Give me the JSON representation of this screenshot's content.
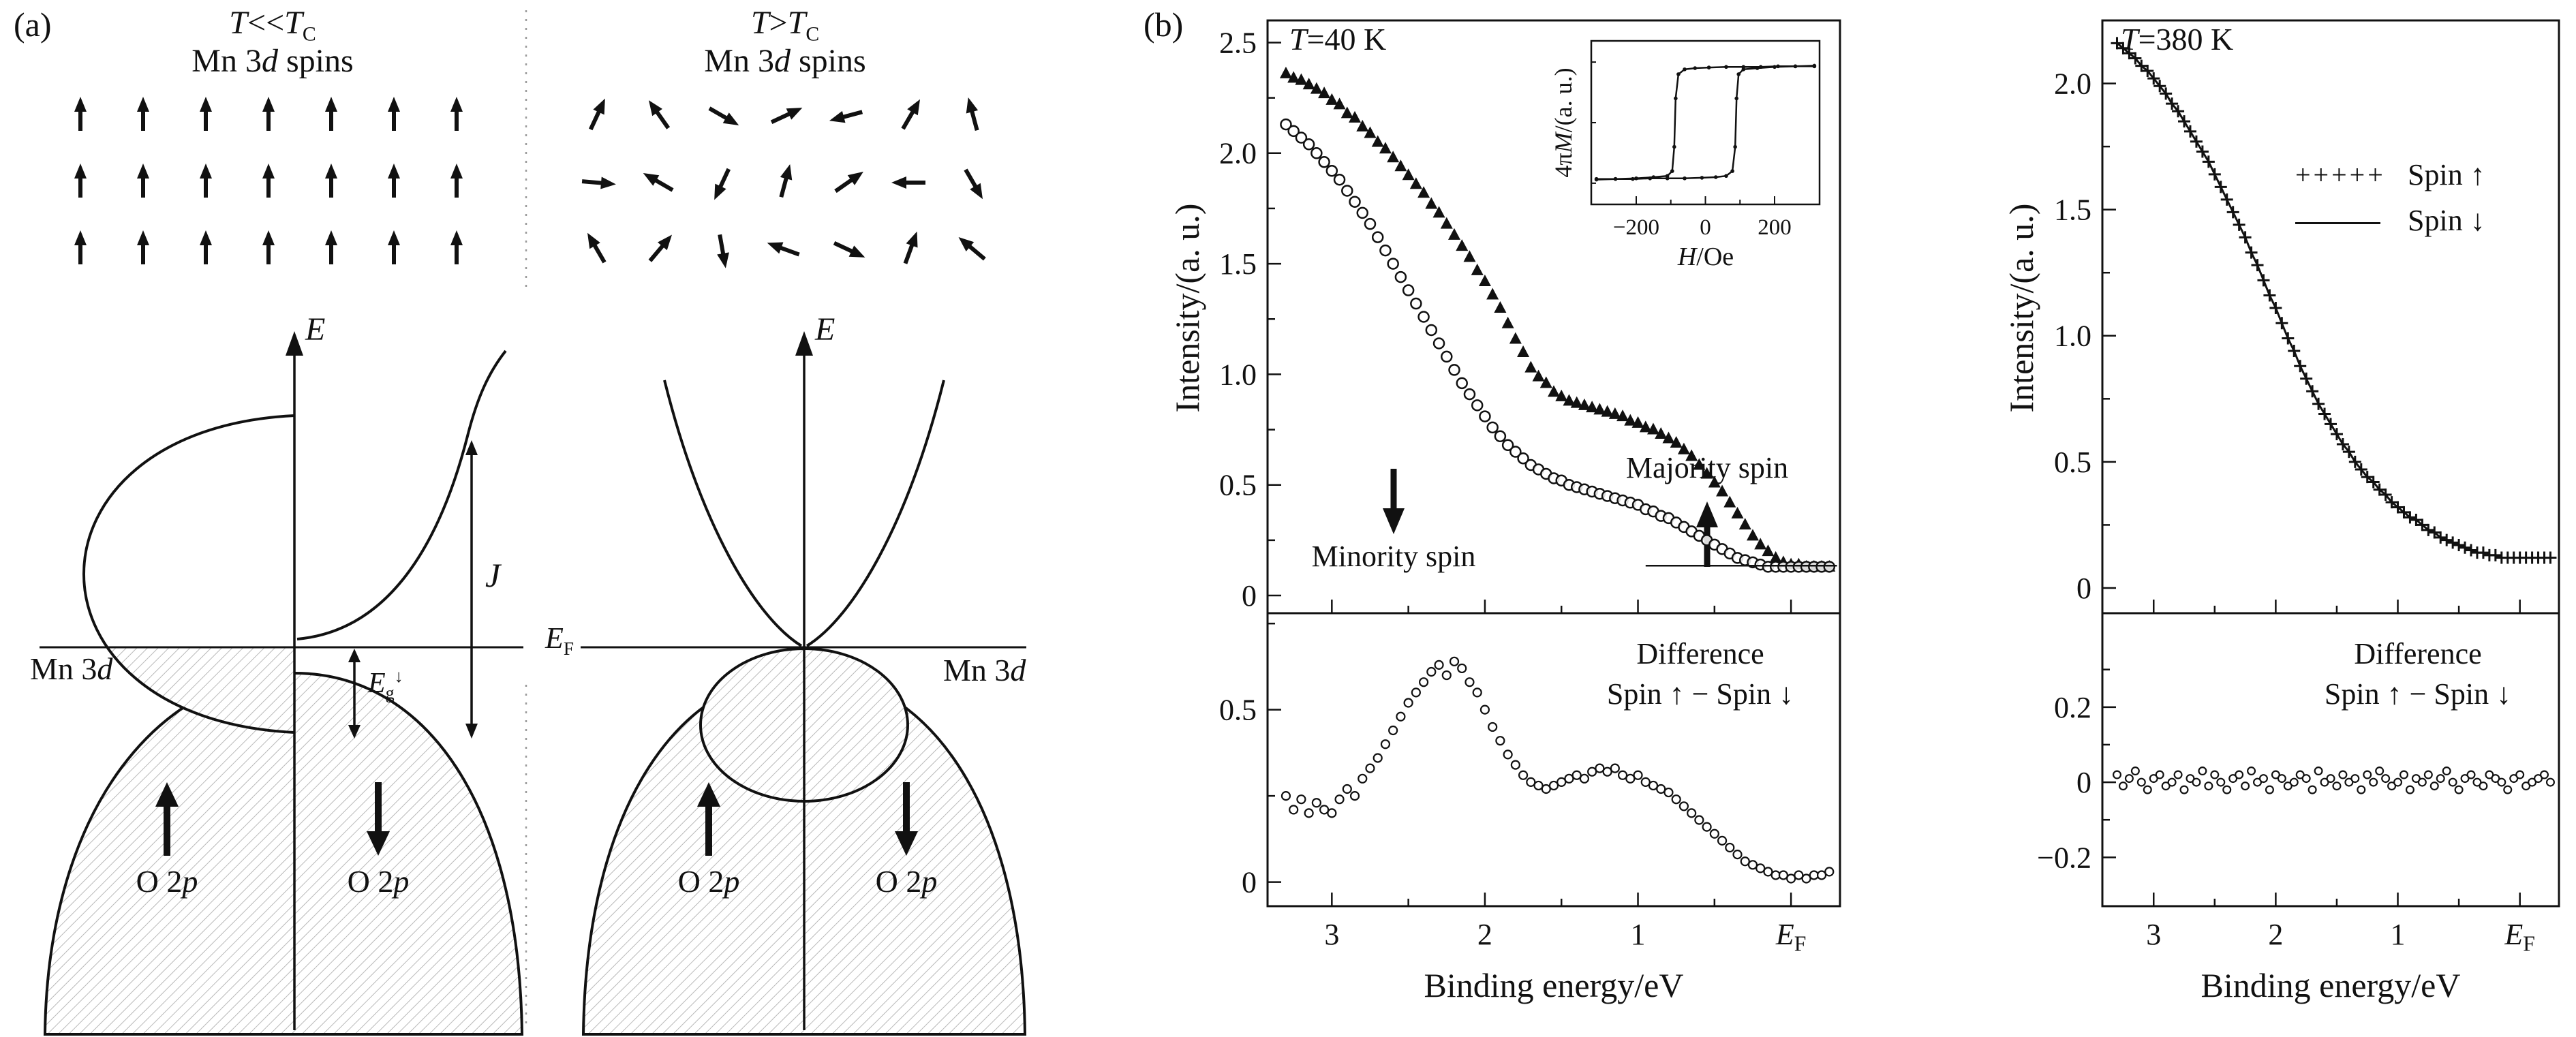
{
  "panel_a": {
    "label": "(a)",
    "left": {
      "title_html": "<i>T</i>&lt;&lt;<i>T</i><sub>C</sub>",
      "subtitle_html": "Mn 3<i>d</i> spins",
      "e_axis_html": "<i>E</i>",
      "mn3d_html": "Mn 3<i>d</i>",
      "eg_html": "<i>E</i><sub>g</sub><sup>↓</sup>",
      "j_html": "<i>J</i>",
      "o2p_up_html": "O 2<i>p</i>",
      "o2p_down_html": "O 2<i>p</i>"
    },
    "right": {
      "title_html": "<i>T</i>&gt;<i>T</i><sub>C</sub>",
      "subtitle_html": "Mn 3<i>d</i> spins",
      "e_axis_html": "<i>E</i>",
      "ef_html": "<i>E</i><sub>F</sub>",
      "mn3d_html": "Mn 3<i>d</i>",
      "o2p_up_html": "O 2<i>p</i>",
      "o2p_down_html": "O 2<i>p</i>"
    },
    "spin_grid": {
      "rows": 3,
      "cols": 7,
      "left_angles": [
        0,
        0,
        0,
        0,
        0,
        0,
        0,
        0,
        0,
        0,
        0,
        0,
        0,
        0,
        0,
        0,
        0,
        0,
        0,
        0,
        0
      ],
      "right_angles": [
        25,
        -35,
        120,
        65,
        -105,
        30,
        -15,
        95,
        -60,
        -155,
        15,
        55,
        -90,
        150,
        -30,
        40,
        170,
        -70,
        115,
        20,
        -50
      ]
    }
  },
  "panel_b": {
    "label": "(b)",
    "chart40": {
      "title_html": "<i>T</i>=40 K",
      "ylabel": "Intensity/(a. u.)",
      "xlabel": "Binding energy/eV",
      "annotation_minority": "Minority spin",
      "annotation_majority": "Majority spin",
      "diff_line1": "Difference",
      "diff_line2": "Spin ↑ − Spin ↓",
      "inset_xlabel_html": "<i>H</i>/Oe",
      "inset_ylabel_html": "4π<i>M</i>/(a. u.)"
    },
    "chart380": {
      "title_html": "<i>T</i>=380 K",
      "ylabel": "Intensity/(a. u.)",
      "xlabel": "Binding energy/eV",
      "diff_line1": "Difference",
      "diff_line2": "Spin ↑ − Spin ↓",
      "legend_marker_up": "+++++",
      "legend_up": "Spin ↑",
      "legend_down": "Spin ↓"
    }
  },
  "chart_data": [
    {
      "id": "main40",
      "type": "scatter",
      "title": "T=40 K",
      "xlabel": "Binding energy/eV",
      "ylabel": "Intensity/(a. u.)",
      "x_axis_reversed": true,
      "xlim": [
        3.42,
        -0.32
      ],
      "ylim": [
        -0.08,
        2.6
      ],
      "xticks": [
        {
          "v": 3,
          "label": "3"
        },
        {
          "v": 2,
          "label": "2"
        },
        {
          "v": 1,
          "label": "1"
        },
        {
          "v": 0,
          "label": "E_F"
        }
      ],
      "xticks_minor": [
        2.5,
        1.5,
        0.5
      ],
      "yticks": [
        {
          "v": 0,
          "label": "0"
        },
        {
          "v": 0.5,
          "label": "0.5"
        },
        {
          "v": 1,
          "label": "1.0"
        },
        {
          "v": 1.5,
          "label": "1.5"
        },
        {
          "v": 2,
          "label": "2.0"
        },
        {
          "v": 2.5,
          "label": "2.5"
        }
      ],
      "yticks_minor": [
        0.25,
        0.75,
        1.25,
        1.75,
        2.25
      ],
      "annotations": [
        {
          "text": "Minority spin",
          "arrow": "down"
        },
        {
          "text": "Majority spin",
          "arrow": "up"
        }
      ],
      "series": [
        {
          "name": "Majority spin",
          "marker": "triangle",
          "line": false,
          "x0": 3.3,
          "dx": -0.05,
          "y": [
            2.36,
            2.34,
            2.33,
            2.31,
            2.29,
            2.27,
            2.24,
            2.22,
            2.18,
            2.16,
            2.12,
            2.09,
            2.05,
            2.02,
            1.98,
            1.94,
            1.9,
            1.86,
            1.82,
            1.77,
            1.73,
            1.68,
            1.63,
            1.58,
            1.53,
            1.47,
            1.42,
            1.36,
            1.3,
            1.23,
            1.16,
            1.1,
            1.03,
            0.99,
            0.96,
            0.92,
            0.9,
            0.88,
            0.87,
            0.86,
            0.85,
            0.84,
            0.83,
            0.82,
            0.81,
            0.79,
            0.78,
            0.76,
            0.75,
            0.73,
            0.71,
            0.69,
            0.66,
            0.63,
            0.59,
            0.55,
            0.51,
            0.47,
            0.42,
            0.37,
            0.32,
            0.27,
            0.23,
            0.2,
            0.17,
            0.15,
            0.14,
            0.14,
            0.13,
            0.13,
            0.13,
            0.13
          ]
        },
        {
          "name": "Minority spin",
          "marker": "circle",
          "line": false,
          "x0": 3.3,
          "dx": -0.05,
          "y": [
            2.13,
            2.1,
            2.07,
            2.04,
            2.0,
            1.96,
            1.92,
            1.88,
            1.83,
            1.78,
            1.73,
            1.68,
            1.62,
            1.56,
            1.5,
            1.44,
            1.38,
            1.32,
            1.26,
            1.2,
            1.14,
            1.08,
            1.02,
            0.96,
            0.91,
            0.86,
            0.81,
            0.76,
            0.72,
            0.68,
            0.65,
            0.62,
            0.59,
            0.57,
            0.55,
            0.53,
            0.52,
            0.5,
            0.49,
            0.48,
            0.47,
            0.46,
            0.45,
            0.44,
            0.43,
            0.42,
            0.41,
            0.39,
            0.38,
            0.36,
            0.35,
            0.33,
            0.31,
            0.29,
            0.27,
            0.25,
            0.23,
            0.21,
            0.19,
            0.17,
            0.16,
            0.15,
            0.14,
            0.13,
            0.13,
            0.13,
            0.13,
            0.13,
            0.13,
            0.13,
            0.13,
            0.13
          ]
        },
        {
          "name": "background level",
          "marker": null,
          "line": true,
          "lw": 2.5,
          "points": [
            [
              0.95,
              0.135
            ],
            [
              -0.3,
              0.135
            ]
          ]
        }
      ]
    },
    {
      "id": "diff40",
      "type": "scatter",
      "panel_label": [
        "Difference",
        "Spin ↑ − Spin ↓"
      ],
      "xlim": [
        3.42,
        -0.32
      ],
      "ylim": [
        -0.07,
        0.78
      ],
      "xticks": [
        {
          "v": 3,
          "label": "3"
        },
        {
          "v": 2,
          "label": "2"
        },
        {
          "v": 1,
          "label": "1"
        },
        {
          "v": 0,
          "label": "E_F"
        }
      ],
      "xticks_minor": [
        2.5,
        1.5,
        0.5
      ],
      "yticks": [
        {
          "v": 0,
          "label": "0"
        },
        {
          "v": 0.5,
          "label": "0.5"
        }
      ],
      "yticks_minor": [
        0.25,
        0.75
      ],
      "series": [
        {
          "name": "Spin ↑ − Spin ↓",
          "marker": "circle-small",
          "line": false,
          "x0": 3.3,
          "dx": -0.05,
          "y": [
            0.25,
            0.21,
            0.24,
            0.2,
            0.23,
            0.21,
            0.2,
            0.24,
            0.27,
            0.25,
            0.3,
            0.33,
            0.36,
            0.4,
            0.44,
            0.48,
            0.52,
            0.55,
            0.58,
            0.61,
            0.63,
            0.6,
            0.64,
            0.62,
            0.58,
            0.55,
            0.5,
            0.45,
            0.41,
            0.37,
            0.34,
            0.31,
            0.29,
            0.28,
            0.27,
            0.28,
            0.29,
            0.3,
            0.31,
            0.3,
            0.32,
            0.33,
            0.32,
            0.33,
            0.31,
            0.3,
            0.31,
            0.29,
            0.28,
            0.27,
            0.26,
            0.24,
            0.22,
            0.2,
            0.18,
            0.16,
            0.14,
            0.12,
            0.1,
            0.08,
            0.06,
            0.05,
            0.04,
            0.03,
            0.02,
            0.02,
            0.01,
            0.02,
            0.01,
            0.02,
            0.02,
            0.03
          ]
        }
      ]
    },
    {
      "id": "inset40",
      "type": "line",
      "xlabel": "H/Oe",
      "ylabel": "4πM/(a. u.)",
      "xlim": [
        -330,
        330
      ],
      "ylim": [
        -1.35,
        1.35
      ],
      "xticks": [
        {
          "v": -200,
          "label": "−200"
        },
        {
          "v": 0,
          "label": "0"
        },
        {
          "v": 200,
          "label": "200"
        }
      ],
      "xticks_minor": [
        -100,
        100
      ],
      "yticks": [],
      "yticks_minor": [
        -1,
        0,
        1
      ],
      "series": [
        {
          "name": "M(H) decreasing branch",
          "marker": "dot",
          "line": true,
          "points": [
            [
              315,
              0.94
            ],
            [
              260,
              0.93
            ],
            [
              210,
              0.93
            ],
            [
              160,
              0.92
            ],
            [
              110,
              0.92
            ],
            [
              60,
              0.92
            ],
            [
              10,
              0.91
            ],
            [
              -30,
              0.9
            ],
            [
              -60,
              0.88
            ],
            [
              -78,
              0.8
            ],
            [
              -86,
              0.4
            ],
            [
              -90,
              -0.4
            ],
            [
              -96,
              -0.8
            ],
            [
              -110,
              -0.88
            ],
            [
              -150,
              -0.9
            ],
            [
              -200,
              -0.92
            ],
            [
              -260,
              -0.93
            ],
            [
              -315,
              -0.93
            ]
          ]
        },
        {
          "name": "M(H) increasing branch",
          "marker": "dot",
          "line": true,
          "points": [
            [
              -315,
              -0.94
            ],
            [
              -260,
              -0.93
            ],
            [
              -210,
              -0.93
            ],
            [
              -160,
              -0.92
            ],
            [
              -110,
              -0.92
            ],
            [
              -60,
              -0.92
            ],
            [
              -10,
              -0.91
            ],
            [
              30,
              -0.9
            ],
            [
              60,
              -0.88
            ],
            [
              78,
              -0.8
            ],
            [
              86,
              -0.4
            ],
            [
              90,
              0.4
            ],
            [
              96,
              0.8
            ],
            [
              110,
              0.88
            ],
            [
              150,
              0.9
            ],
            [
              200,
              0.92
            ],
            [
              260,
              0.93
            ],
            [
              315,
              0.93
            ]
          ]
        }
      ]
    },
    {
      "id": "main380",
      "type": "scatter",
      "title": "T=380 K",
      "xlabel": "Binding energy/eV",
      "ylabel": "Intensity/(a. u.)",
      "x_axis_reversed": true,
      "xlim": [
        3.42,
        -0.32
      ],
      "ylim": [
        -0.1,
        2.25
      ],
      "xticks": [
        {
          "v": 3,
          "label": "3"
        },
        {
          "v": 2,
          "label": "2"
        },
        {
          "v": 1,
          "label": "1"
        },
        {
          "v": 0,
          "label": "E_F"
        }
      ],
      "xticks_minor": [
        2.5,
        1.5,
        0.5
      ],
      "yticks": [
        {
          "v": 0,
          "label": "0"
        },
        {
          "v": 0.5,
          "label": "0.5"
        },
        {
          "v": 1,
          "label": "1.0"
        },
        {
          "v": 1.5,
          "label": "1.5"
        },
        {
          "v": 2,
          "label": "2.0"
        }
      ],
      "yticks_minor": [
        0.25,
        0.75,
        1.25,
        1.75
      ],
      "legend": [
        {
          "marker": "plus",
          "label": "Spin ↑"
        },
        {
          "marker": "line",
          "label": "Spin ↓"
        }
      ],
      "legend_position": "top-right",
      "series": [
        {
          "name": "Spin ↑",
          "marker": "plus",
          "line": false,
          "x0": 3.3,
          "dx": -0.05,
          "y": [
            2.16,
            2.14,
            2.12,
            2.1,
            2.07,
            2.05,
            2.02,
            1.99,
            1.96,
            1.92,
            1.89,
            1.85,
            1.81,
            1.77,
            1.73,
            1.69,
            1.64,
            1.59,
            1.54,
            1.49,
            1.44,
            1.39,
            1.33,
            1.28,
            1.22,
            1.16,
            1.11,
            1.05,
            0.99,
            0.94,
            0.88,
            0.83,
            0.78,
            0.73,
            0.69,
            0.65,
            0.61,
            0.57,
            0.54,
            0.5,
            0.47,
            0.44,
            0.42,
            0.39,
            0.37,
            0.34,
            0.32,
            0.3,
            0.28,
            0.27,
            0.25,
            0.23,
            0.22,
            0.2,
            0.19,
            0.18,
            0.17,
            0.16,
            0.15,
            0.14,
            0.14,
            0.13,
            0.13,
            0.12,
            0.12,
            0.12,
            0.12,
            0.12,
            0.12,
            0.12,
            0.12,
            0.12
          ]
        },
        {
          "name": "Spin ↓",
          "marker": null,
          "line": true,
          "x0": 3.3,
          "dx": -0.05,
          "y": [
            2.16,
            2.14,
            2.12,
            2.1,
            2.07,
            2.05,
            2.02,
            1.99,
            1.96,
            1.92,
            1.89,
            1.85,
            1.81,
            1.77,
            1.73,
            1.69,
            1.64,
            1.59,
            1.54,
            1.49,
            1.44,
            1.39,
            1.33,
            1.28,
            1.22,
            1.16,
            1.11,
            1.05,
            0.99,
            0.94,
            0.88,
            0.83,
            0.78,
            0.73,
            0.69,
            0.65,
            0.61,
            0.57,
            0.54,
            0.5,
            0.47,
            0.44,
            0.42,
            0.39,
            0.37,
            0.34,
            0.32,
            0.3,
            0.28,
            0.27,
            0.25,
            0.23,
            0.22,
            0.2,
            0.19,
            0.18,
            0.17,
            0.16,
            0.15,
            0.14,
            0.14,
            0.13,
            0.13,
            0.12,
            0.12,
            0.12,
            0.12,
            0.12,
            0.12,
            0.12,
            0.12,
            0.12
          ]
        }
      ]
    },
    {
      "id": "diff380",
      "type": "scatter",
      "panel_label": [
        "Difference",
        "Spin ↑ − Spin ↓"
      ],
      "xlim": [
        3.42,
        -0.32
      ],
      "ylim": [
        -0.33,
        0.45
      ],
      "xticks": [
        {
          "v": 3,
          "label": "3"
        },
        {
          "v": 2,
          "label": "2"
        },
        {
          "v": 1,
          "label": "1"
        },
        {
          "v": 0,
          "label": "E_F"
        }
      ],
      "xticks_minor": [
        2.5,
        1.5,
        0.5
      ],
      "yticks": [
        {
          "v": -0.2,
          "label": "−0.2"
        },
        {
          "v": 0,
          "label": "0"
        },
        {
          "v": 0.2,
          "label": "0.2"
        }
      ],
      "yticks_minor": [
        -0.1,
        0.1,
        0.3
      ],
      "series": [
        {
          "name": "Spin ↑ − Spin ↓",
          "marker": "circle-small",
          "msize": 0.9,
          "line": false,
          "x0": 3.3,
          "dx": -0.05,
          "y": [
            0.02,
            -0.01,
            0.01,
            0.03,
            0.0,
            -0.02,
            0.01,
            0.02,
            -0.01,
            0.0,
            0.02,
            -0.02,
            0.01,
            0.0,
            0.03,
            -0.01,
            0.02,
            0.0,
            -0.02,
            0.01,
            0.02,
            -0.01,
            0.03,
            0.0,
            0.01,
            -0.02,
            0.02,
            0.01,
            -0.01,
            0.0,
            0.02,
            0.01,
            -0.02,
            0.03,
            0.0,
            0.01,
            -0.01,
            0.02,
            0.0,
            0.01,
            -0.02,
            0.02,
            0.0,
            0.03,
            0.01,
            -0.01,
            0.0,
            0.02,
            -0.02,
            0.01,
            0.0,
            0.02,
            -0.01,
            0.01,
            0.03,
            0.0,
            -0.02,
            0.01,
            0.02,
            0.0,
            -0.01,
            0.02,
            0.01,
            0.0,
            -0.02,
            0.01,
            0.02,
            -0.01,
            0.0,
            0.01,
            0.02,
            0.0
          ]
        }
      ]
    }
  ]
}
